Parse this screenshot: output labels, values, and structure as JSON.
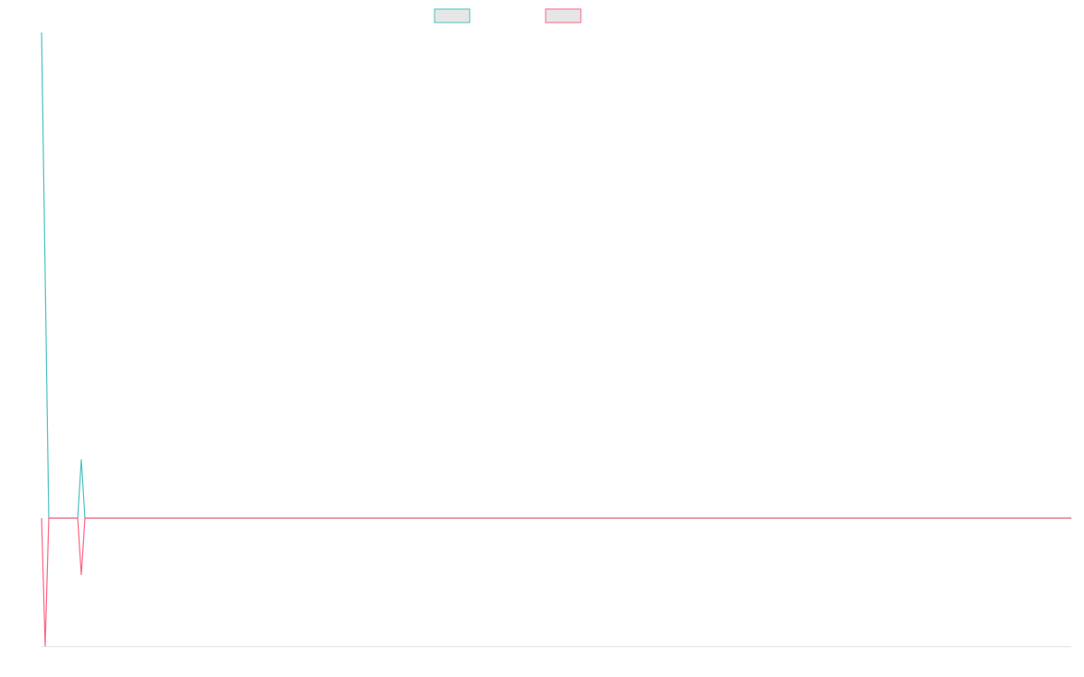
{
  "chart_data": {
    "type": "line",
    "x": [
      0,
      1,
      2,
      10,
      11,
      12,
      285
    ],
    "xlim": [
      0,
      285
    ],
    "ylim": [
      -142,
      538
    ],
    "series": [
      {
        "color": "#4bc0c0",
        "values": [
          538,
          269,
          0,
          0,
          65,
          0,
          0
        ]
      },
      {
        "color": "#ff6384",
        "values": [
          0,
          -142,
          0,
          0,
          -63,
          0,
          0
        ]
      }
    ]
  }
}
